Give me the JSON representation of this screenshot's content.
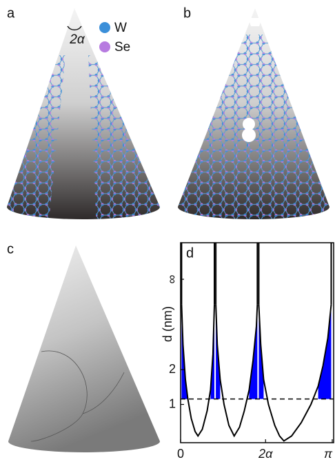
{
  "panels": {
    "a": {
      "label": "a",
      "angle_label": "2α",
      "legend": [
        "W",
        "Se"
      ]
    },
    "b": {
      "label": "b"
    },
    "c": {
      "label": "c"
    },
    "d": {
      "label": "d"
    }
  },
  "chart_data": {
    "type": "line",
    "ylabel": "d (nm)",
    "x": [
      0.02,
      0.05,
      0.1,
      0.15,
      0.22,
      0.3,
      0.36,
      0.45,
      0.55,
      0.62,
      0.67,
      0.7,
      0.71,
      0.73,
      0.76,
      0.82,
      0.9,
      1.0,
      1.11,
      1.22,
      1.32,
      1.42,
      1.5,
      1.57,
      1.59,
      1.6,
      1.62,
      1.66,
      1.72,
      1.82,
      1.95,
      2.05,
      2.14,
      2.3,
      2.5,
      2.7,
      2.85,
      2.95,
      3.05,
      3.12
    ],
    "series": [
      {
        "color": "#000000",
        "fill_color": "#0000ff",
        "values": [
          30,
          4,
          1.6,
          1.1,
          0.8,
          0.66,
          0.62,
          0.68,
          0.9,
          1.3,
          3,
          30,
          null,
          30,
          4,
          1.6,
          1.0,
          0.72,
          0.62,
          0.7,
          0.9,
          1.3,
          2.5,
          8,
          30,
          null,
          30,
          4,
          1.6,
          1.0,
          0.72,
          0.62,
          0.58,
          0.62,
          0.75,
          1.0,
          1.4,
          2.2,
          5,
          30
        ]
      }
    ],
    "threshold": 1.1,
    "xlim": [
      0,
      3.1416
    ],
    "xticks": [
      0,
      {
        "value": 1.76,
        "label": "2α"
      },
      {
        "value": 3.1416,
        "label": "π"
      }
    ],
    "ylim": [
      0.567,
      null
    ],
    "yticks": [
      1,
      2,
      {
        "value": null,
        "label": "∞"
      }
    ]
  }
}
